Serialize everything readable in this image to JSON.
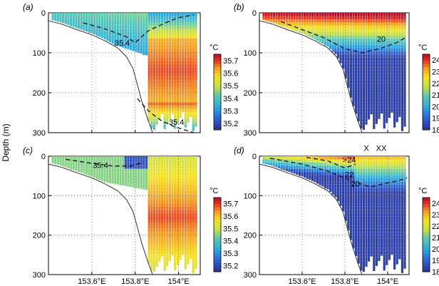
{
  "ylabel": "Depth (m)",
  "chart_data": [
    {
      "type": "heatmap",
      "panel_label": "(a)",
      "unit_label": "°C",
      "depth_range": [
        0,
        300
      ],
      "depth_ticks": [
        0,
        100,
        200,
        300
      ],
      "lon_range": [
        153.4,
        154.1
      ],
      "lon_ticks": [
        "153.6°E",
        "153.8°E",
        "154°E"
      ],
      "colorbar": {
        "min": 35.15,
        "max": 35.75,
        "ticks": [
          35.2,
          35.3,
          35.4,
          35.5,
          35.6,
          35.7
        ],
        "tick_labels": [
          "35.2",
          "35.3",
          "35.4",
          "35.5",
          "35.6",
          "35.7"
        ]
      },
      "contours": [
        {
          "label": "35.4",
          "points": [
            [
              153.56,
              25
            ],
            [
              153.66,
              40
            ],
            [
              153.76,
              60
            ],
            [
              153.8,
              75
            ],
            [
              153.86,
              45
            ],
            [
              153.94,
              25
            ],
            [
              154.0,
              12
            ],
            [
              154.07,
              5
            ]
          ]
        },
        {
          "label": "35.4",
          "points": [
            [
              153.81,
              215
            ],
            [
              153.86,
              245
            ],
            [
              153.92,
              270
            ],
            [
              153.98,
              285
            ],
            [
              154.07,
              300
            ]
          ]
        }
      ],
      "annotations": [
        {
          "text": "35.4",
          "lon": 153.74,
          "depth": 82
        },
        {
          "text": "35.4",
          "lon": 153.99,
          "depth": 280
        }
      ],
      "grid": true
    },
    {
      "type": "heatmap",
      "panel_label": "(b)",
      "unit_label": "°C",
      "depth_range": [
        0,
        300
      ],
      "depth_ticks": [
        0,
        100,
        200,
        300
      ],
      "lon_range": [
        153.4,
        154.1
      ],
      "lon_ticks": [
        "153.6°E",
        "153.8°E",
        "154°E"
      ],
      "colorbar": {
        "min": 18,
        "max": 24.5,
        "ticks": [
          18,
          19,
          20,
          21,
          22,
          23,
          24
        ],
        "tick_labels": [
          "18",
          "19",
          "20",
          "21",
          "22",
          "23",
          "24"
        ]
      },
      "contours": [
        {
          "label": "20",
          "points": [
            [
              153.5,
              22
            ],
            [
              153.6,
              42
            ],
            [
              153.7,
              62
            ],
            [
              153.8,
              90
            ],
            [
              153.88,
              100
            ],
            [
              153.96,
              90
            ],
            [
              154.04,
              75
            ],
            [
              154.09,
              60
            ]
          ]
        }
      ],
      "annotations": [
        {
          "text": "20",
          "lon": 153.97,
          "depth": 72
        }
      ],
      "grid": true
    },
    {
      "type": "heatmap",
      "panel_label": "(c)",
      "unit_label": "°C",
      "depth_range": [
        0,
        300
      ],
      "depth_ticks": [
        0,
        100,
        200,
        300
      ],
      "lon_range": [
        153.4,
        154.1
      ],
      "lon_ticks": [
        "153.6°E",
        "153.8°E",
        "154°E"
      ],
      "colorbar": {
        "min": 35.15,
        "max": 35.75,
        "ticks": [
          35.2,
          35.3,
          35.4,
          35.5,
          35.6,
          35.7
        ],
        "tick_labels": [
          "35.2",
          "35.3",
          "35.4",
          "35.5",
          "35.6",
          "35.7"
        ]
      },
      "contours": [
        {
          "label": "35.4",
          "points": [
            [
              153.48,
              8
            ],
            [
              153.6,
              18
            ],
            [
              153.7,
              25
            ],
            [
              153.78,
              25
            ],
            [
              153.84,
              15
            ]
          ]
        }
      ],
      "annotations": [
        {
          "text": "35.4",
          "lon": 153.64,
          "depth": 30
        }
      ],
      "grid": true
    },
    {
      "type": "heatmap",
      "panel_label": "(d)",
      "unit_label": "°C",
      "depth_range": [
        0,
        300
      ],
      "depth_ticks": [
        0,
        100,
        200,
        300
      ],
      "lon_range": [
        153.4,
        154.1
      ],
      "lon_ticks": [
        "153.6°E",
        "153.8°E",
        "154°E"
      ],
      "colorbar": {
        "min": 18,
        "max": 24.5,
        "ticks": [
          18,
          19,
          20,
          21,
          22,
          23,
          24
        ],
        "tick_labels": [
          "18",
          "19",
          "20",
          "21",
          "22",
          "23",
          "24"
        ]
      },
      "contours": [
        {
          "label": "20",
          "points": [
            [
              153.86,
              68
            ],
            [
              153.92,
              78
            ],
            [
              153.98,
              70
            ],
            [
              154.05,
              62
            ],
            [
              154.09,
              55
            ]
          ]
        },
        {
          "label": "22",
          "points": [
            [
              153.45,
              5
            ],
            [
              153.6,
              20
            ],
            [
              153.72,
              38
            ],
            [
              153.82,
              60
            ]
          ]
        },
        {
          "label": "24",
          "points": [
            [
              153.62,
              3
            ],
            [
              153.72,
              12
            ],
            [
              153.8,
              30
            ],
            [
              153.85,
              20
            ]
          ]
        }
      ],
      "annotations": [
        {
          "text": ">24",
          "lon": 153.82,
          "depth": 16
        },
        {
          "text": "22",
          "lon": 153.82,
          "depth": 53
        },
        {
          "text": "20",
          "lon": 153.85,
          "depth": 77
        },
        {
          "text": "X",
          "lon": 153.9,
          "depth": -14
        },
        {
          "text": "XX",
          "lon": 153.97,
          "depth": -14
        }
      ],
      "grid": true
    }
  ]
}
